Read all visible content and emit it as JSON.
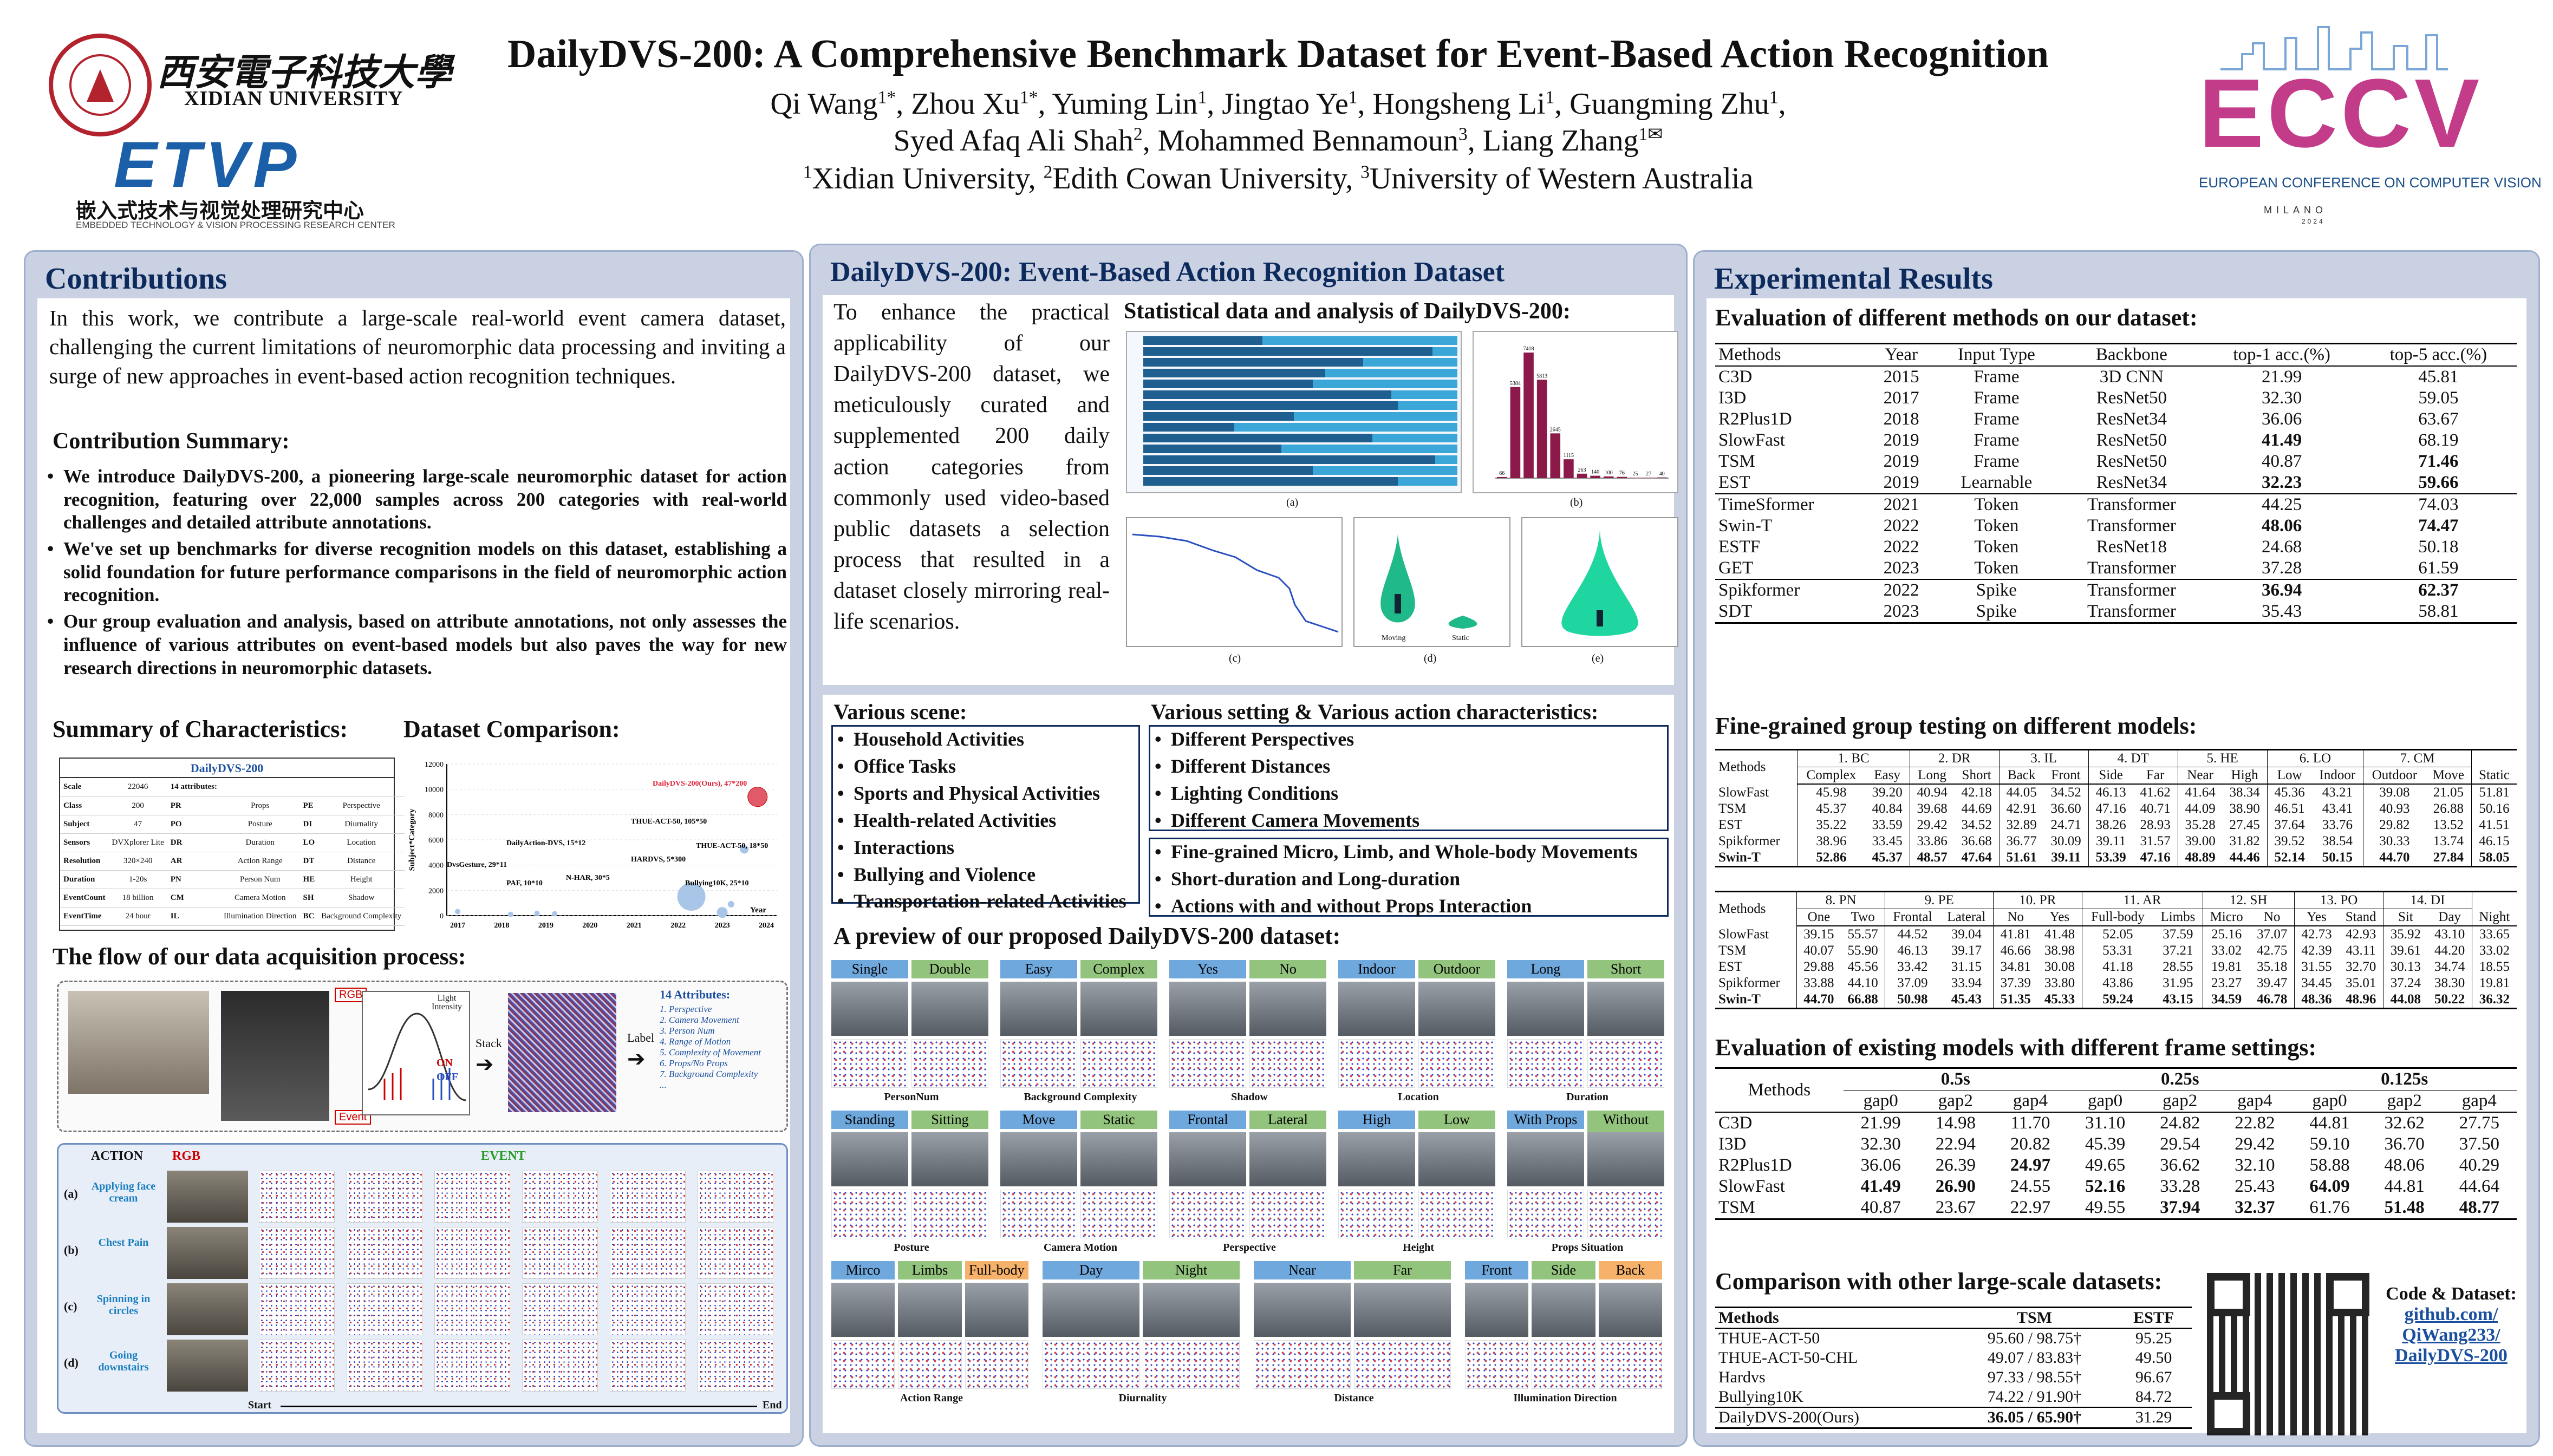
{
  "header": {
    "university_cn": "西安電子科技大學",
    "university_en": "XIDIAN UNIVERSITY",
    "lab_logo_text": "ETVP",
    "lab_cn": "嵌入式技术与视觉处理研究中心",
    "lab_en": "EMBEDDED TECHNOLOGY & VISION PROCESSING RESEARCH CENTER",
    "title": "DailyDVS-200: A Comprehensive Benchmark Dataset for Event-Based Action Recognition",
    "authors_line1": "Qi Wang1*, Zhou Xu1*, Yuming Lin1, Jingtao Ye1, Hongsheng Li1, Guangming Zhu1,",
    "authors_line2": "Syed Afaq Ali Shah2, Mohammed Bennamoun3, Liang Zhang1✉",
    "affiliations": "1Xidian University, 2Edith Cowan University, 3University of Western Australia",
    "eccv_logo": "ECCV",
    "eccv_full": "EUROPEAN CONFERENCE ON COMPUTER VISION",
    "eccv_city": "MILANO",
    "eccv_year": "2024"
  },
  "left": {
    "heading": "Contributions",
    "intro": "In this work, we contribute a large-scale real-world event camera dataset, challenging the current limitations of neuromorphic data processing and inviting a surge of new approaches in event-based action recognition techniques.",
    "summary_heading": "Contribution Summary:",
    "bullets": [
      "We introduce DailyDVS-200, a pioneering large-scale neuromorphic dataset for action recognition, featuring over 22,000 samples across 200 categories with real-world challenges and detailed attribute annotations.",
      "We've set up benchmarks for diverse recognition models on this dataset, establishing a solid foundation for future performance comparisons in the field of neuromorphic action recognition.",
      "Our group evaluation and analysis, based on attribute annotations, not only assesses the influence of various attributes on event-based models but also paves the way for new research directions in neuromorphic datasets."
    ],
    "characteristics_heading": "Summary of Characteristics:",
    "comparison_heading": "Dataset Comparison:",
    "char_table": {
      "title": "DailyDVS-200",
      "rows": [
        [
          "Scale",
          "22046",
          "14 attributes:",
          "",
          ""
        ],
        [
          "Class",
          "200",
          "PR",
          "Props",
          "PE",
          "Perspective"
        ],
        [
          "Subject",
          "47",
          "PO",
          "Posture",
          "DI",
          "Diurnality"
        ],
        [
          "Sensors",
          "DVXplorer Lite",
          "DR",
          "Duration",
          "LO",
          "Location"
        ],
        [
          "Resolution",
          "320×240",
          "AR",
          "Action Range",
          "DT",
          "Distance"
        ],
        [
          "Duration",
          "1-20s",
          "PN",
          "Person Num",
          "HE",
          "Height"
        ],
        [
          "EventCount",
          "18 billion",
          "CM",
          "Camera Motion",
          "SH",
          "Shadow"
        ],
        [
          "EventTime",
          "24 hour",
          "IL",
          "Illumination Direction",
          "BC",
          "Background Complexity"
        ]
      ]
    },
    "comparison_chart": {
      "ylabel": "Subject*Category",
      "xlabel": "Year",
      "yticks": [
        "0",
        "2000",
        "4000",
        "6000",
        "8000",
        "10000",
        "12000"
      ],
      "xticks": [
        "2017",
        "2018",
        "2019",
        "2020",
        "2021",
        "2022",
        "2023",
        "2024"
      ],
      "labels": [
        "DailyDVS-200(Ours), 47*200",
        "THUE-ACT-50, 105*50",
        "DailyAction-DVS, 15*12",
        "HARDVS, 5*300",
        "THUE-ACT-50, 18*50",
        "DvsGesture, 29*11",
        "N-HAR, 30*5",
        "PAF, 10*10",
        "Bullying10K, 25*10"
      ]
    },
    "flow_heading": "The flow of our data acquisition process:",
    "flow": {
      "rgb": "RGB",
      "event": "Event",
      "light": "Light Intensity",
      "on": "ON",
      "off": "OFF",
      "stack": "Stack",
      "label": "Label",
      "attr_title": "14 Attributes:",
      "attrs": [
        "1. Perspective",
        "2. Camera Movement",
        "3. Person Num",
        "4. Range of Motion",
        "5. Complexity of Movement",
        "6. Props/No Props",
        "7. Background Complexity",
        "..."
      ]
    },
    "action_grid": {
      "action": "ACTION",
      "rgb": "RGB",
      "event": "EVENT",
      "rows": [
        {
          "id": "(a)",
          "name": "Applying face cream"
        },
        {
          "id": "(b)",
          "name": "Chest Pain"
        },
        {
          "id": "(c)",
          "name": "Spinning in circles"
        },
        {
          "id": "(d)",
          "name": "Going downstairs"
        }
      ],
      "start": "Start",
      "end": "End"
    }
  },
  "middle": {
    "heading": "DailyDVS-200: Event-Based Action Recognition Dataset",
    "intro": "To enhance the practical applicability of our DailyDVS-200 dataset, we meticulously curated and supplemented 200 daily action categories from commonly used video-based public datasets a selection process that resulted in a dataset closely mirroring real-life scenarios.",
    "stats_heading": "Statistical data and analysis of DailyDVS-200:",
    "sub_a": "(a)",
    "sub_b": "(b)",
    "sub_c": "(c)",
    "sub_d": "(d)",
    "sub_e": "(e)",
    "hist_values": [
      66,
      5384,
      7418,
      5813,
      2645,
      1115,
      263,
      140,
      100,
      76,
      25,
      27,
      40
    ],
    "violin_d_labels": [
      "Moving",
      "Static"
    ],
    "scene_heading": "Various scene:",
    "scenes": [
      "Household Activities",
      "Office Tasks",
      "Sports and Physical Activities",
      "Health-related Activities",
      "Interactions",
      "Bullying and Violence",
      "Transportation-related Activities"
    ],
    "setting_heading": "Various setting & Various action characteristics:",
    "settings": [
      "Different Perspectives",
      "Different Distances",
      "Lighting Conditions",
      "Different Camera Movements"
    ],
    "characteristics": [
      "Fine-grained Micro, Limb, and Whole-body Movements",
      "Short-duration and Long-duration",
      "Actions with and without Props Interaction"
    ],
    "preview_heading": "A preview of our proposed DailyDVS-200 dataset:",
    "preview_groups": [
      {
        "tags": [
          "Single",
          "Double"
        ],
        "caption": "PersonNum"
      },
      {
        "tags": [
          "Easy",
          "Complex"
        ],
        "caption": "Background Complexity"
      },
      {
        "tags": [
          "Yes",
          "No"
        ],
        "caption": "Shadow"
      },
      {
        "tags": [
          "Indoor",
          "Outdoor"
        ],
        "caption": "Location"
      },
      {
        "tags": [
          "Long",
          "Short"
        ],
        "caption": "Duration"
      },
      {
        "tags": [
          "Standing",
          "Sitting"
        ],
        "caption": "Posture"
      },
      {
        "tags": [
          "Move",
          "Static"
        ],
        "caption": "Camera Motion"
      },
      {
        "tags": [
          "Frontal",
          "Lateral"
        ],
        "caption": "Perspective"
      },
      {
        "tags": [
          "High",
          "Low"
        ],
        "caption": "Height"
      },
      {
        "tags": [
          "With Props",
          "Without Props"
        ],
        "caption": "Props Situation"
      },
      {
        "tags": [
          "Mirco",
          "Limbs",
          "Full-body"
        ],
        "caption": "Action Range"
      },
      {
        "tags": [
          "Day",
          "Night"
        ],
        "caption": "Diurnality"
      },
      {
        "tags": [
          "Near",
          "Far"
        ],
        "caption": "Distance"
      },
      {
        "tags": [
          "Front",
          "Side",
          "Back"
        ],
        "caption": "Illumination Direction"
      }
    ]
  },
  "right": {
    "heading": "Experimental Results",
    "eval_heading": "Evaluation of different methods on our dataset:",
    "eval_cols": [
      "Methods",
      "Year",
      "Input Type",
      "Backbone",
      "top-1 acc.(%)",
      "top-5 acc.(%)"
    ],
    "eval_groups": [
      [
        [
          "C3D",
          "2015",
          "Frame",
          "3D CNN",
          "21.99",
          "45.81"
        ],
        [
          "I3D",
          "2017",
          "Frame",
          "ResNet50",
          "32.30",
          "59.05"
        ],
        [
          "R2Plus1D",
          "2018",
          "Frame",
          "ResNet34",
          "36.06",
          "63.67"
        ],
        [
          "SlowFast",
          "2019",
          "Frame",
          "ResNet50",
          "41.49",
          "68.19"
        ],
        [
          "TSM",
          "2019",
          "Frame",
          "ResNet50",
          "40.87",
          "71.46"
        ],
        [
          "EST",
          "2019",
          "Learnable",
          "ResNet34",
          "32.23",
          "59.66"
        ]
      ],
      [
        [
          "TimeSformer",
          "2021",
          "Token",
          "Transformer",
          "44.25",
          "74.03"
        ],
        [
          "Swin-T",
          "2022",
          "Token",
          "Transformer",
          "48.06",
          "74.47"
        ],
        [
          "ESTF",
          "2022",
          "Token",
          "ResNet18",
          "24.68",
          "50.18"
        ],
        [
          "GET",
          "2023",
          "Token",
          "Transformer",
          "37.28",
          "61.59"
        ]
      ],
      [
        [
          "Spikformer",
          "2022",
          "Spike",
          "Transformer",
          "36.94",
          "62.37"
        ],
        [
          "SDT",
          "2023",
          "Spike",
          "Transformer",
          "35.43",
          "58.81"
        ]
      ]
    ],
    "fine_heading": "Fine-grained group testing on different models:",
    "fine_t1": {
      "groups": [
        "1. BC",
        "2. DR",
        "3. IL",
        "4. DT",
        "5. HE",
        "6. LO",
        "7. CM"
      ],
      "sub": [
        "Complex",
        "Easy",
        "Long",
        "Short",
        "Back",
        "Front",
        "Side",
        "Far",
        "Near",
        "High",
        "Low",
        "Indoor",
        "Outdoor",
        "Move",
        "Static"
      ],
      "rows": [
        [
          "SlowFast",
          "45.98",
          "39.20",
          "40.94",
          "42.18",
          "44.05",
          "34.52",
          "46.13",
          "41.62",
          "41.64",
          "38.34",
          "45.36",
          "43.21",
          "39.08",
          "21.05",
          "51.81"
        ],
        [
          "TSM",
          "45.37",
          "40.84",
          "39.68",
          "44.69",
          "42.91",
          "36.60",
          "47.16",
          "40.71",
          "44.09",
          "38.90",
          "46.51",
          "43.41",
          "40.93",
          "26.88",
          "50.16"
        ],
        [
          "EST",
          "35.22",
          "33.59",
          "29.42",
          "34.52",
          "32.89",
          "24.71",
          "38.26",
          "28.93",
          "35.28",
          "27.45",
          "37.64",
          "33.76",
          "29.82",
          "13.52",
          "41.51"
        ],
        [
          "Spikformer",
          "38.96",
          "33.45",
          "33.86",
          "36.68",
          "36.77",
          "30.09",
          "39.11",
          "31.57",
          "39.00",
          "31.82",
          "39.52",
          "38.54",
          "30.33",
          "13.74",
          "46.15"
        ],
        [
          "Swin-T",
          "52.86",
          "45.37",
          "48.57",
          "47.64",
          "51.61",
          "39.11",
          "53.39",
          "47.16",
          "48.89",
          "44.46",
          "52.14",
          "50.15",
          "44.70",
          "27.84",
          "58.05"
        ]
      ]
    },
    "fine_t2": {
      "groups": [
        "8. PN",
        "9. PE",
        "10. PR",
        "11. AR",
        "12. SH",
        "13. PO",
        "14. DI"
      ],
      "sub": [
        "One",
        "Two",
        "Frontal",
        "Lateral",
        "No",
        "Yes",
        "Full-body",
        "Limbs",
        "Micro",
        "No",
        "Yes",
        "Stand",
        "Sit",
        "Day",
        "Night"
      ],
      "rows": [
        [
          "SlowFast",
          "39.15",
          "55.57",
          "44.52",
          "39.04",
          "41.81",
          "41.48",
          "52.05",
          "37.59",
          "25.16",
          "37.07",
          "42.73",
          "42.93",
          "35.92",
          "43.10",
          "33.65"
        ],
        [
          "TSM",
          "40.07",
          "55.90",
          "46.13",
          "39.17",
          "46.66",
          "38.98",
          "53.31",
          "37.21",
          "33.02",
          "42.75",
          "42.39",
          "43.11",
          "39.61",
          "44.20",
          "33.02"
        ],
        [
          "EST",
          "29.88",
          "45.56",
          "33.42",
          "31.15",
          "34.81",
          "30.08",
          "41.18",
          "28.55",
          "19.81",
          "35.18",
          "31.55",
          "32.70",
          "30.13",
          "34.74",
          "18.55"
        ],
        [
          "Spikformer",
          "33.88",
          "44.10",
          "37.09",
          "33.94",
          "37.39",
          "33.80",
          "43.86",
          "31.95",
          "23.27",
          "39.47",
          "34.45",
          "35.01",
          "37.24",
          "38.30",
          "19.81"
        ],
        [
          "Swin-T",
          "44.70",
          "66.88",
          "50.98",
          "45.43",
          "51.35",
          "45.33",
          "59.24",
          "43.15",
          "34.59",
          "46.78",
          "48.36",
          "48.96",
          "44.08",
          "50.22",
          "36.32"
        ]
      ]
    },
    "frames_heading": "Evaluation of existing models with different frame settings:",
    "frames_cols": [
      "Methods",
      "0.5s",
      "0.25s",
      "0.125s"
    ],
    "frames_sub": [
      "gap0",
      "gap2",
      "gap4",
      "gap0",
      "gap2",
      "gap4",
      "gap0",
      "gap2",
      "gap4"
    ],
    "frames_rows": [
      [
        "C3D",
        "21.99",
        "14.98",
        "11.70",
        "31.10",
        "24.82",
        "22.82",
        "44.81",
        "32.62",
        "27.75"
      ],
      [
        "I3D",
        "32.30",
        "22.94",
        "20.82",
        "45.39",
        "29.54",
        "29.42",
        "59.10",
        "36.70",
        "37.50"
      ],
      [
        "R2Plus1D",
        "36.06",
        "26.39",
        "24.97",
        "49.65",
        "36.62",
        "32.10",
        "58.88",
        "48.06",
        "40.29"
      ],
      [
        "SlowFast",
        "41.49",
        "26.90",
        "24.55",
        "52.16",
        "33.28",
        "25.43",
        "64.09",
        "44.81",
        "44.64"
      ],
      [
        "TSM",
        "40.87",
        "23.67",
        "22.97",
        "49.55",
        "37.94",
        "32.37",
        "61.76",
        "51.48",
        "48.77"
      ]
    ],
    "compare_heading": "Comparison with other large-scale datasets:",
    "compare_cols": [
      "Methods",
      "TSM",
      "ESTF"
    ],
    "compare_rows": [
      [
        "THUE-ACT-50",
        "95.60 / 98.75†",
        "95.25"
      ],
      [
        "THUE-ACT-50-CHL",
        "49.07 / 83.83†",
        "49.50"
      ],
      [
        "Hardvs",
        "97.33 / 98.55†",
        "96.67"
      ],
      [
        "Bullying10K",
        "74.22 / 91.90†",
        "84.72"
      ]
    ],
    "compare_ours": [
      "DailyDVS-200(Ours)",
      "36.05 / 65.90†",
      "31.29"
    ],
    "code_title": "Code & Dataset:",
    "code_link1": "github.com/",
    "code_link2": "QiWang233/",
    "code_link3": "DailyDVS-200"
  }
}
